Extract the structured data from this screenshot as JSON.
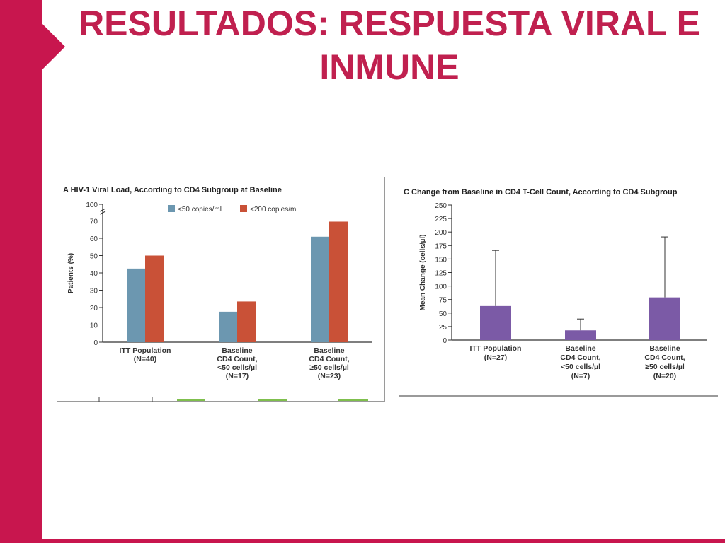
{
  "slide": {
    "title_line1": "RESULTADOS: RESPUESTA VIRAL E",
    "title_line2": "INMUNE",
    "accent_color": "#c8164e",
    "title_color": "#c0204f"
  },
  "chart_data": [
    {
      "type": "bar",
      "panel_letter": "A",
      "title": "HIV-1 Viral Load, According to CD4 Subgroup at Baseline",
      "ylabel": "Patients (%)",
      "xlabel": "",
      "ylim": [
        0,
        100
      ],
      "yticks": [
        0,
        10,
        20,
        30,
        40,
        50,
        60,
        70,
        100
      ],
      "axis_break": true,
      "legend_position": "top-center",
      "grid": false,
      "categories": [
        [
          "ITT Population",
          "(N=40)"
        ],
        [
          "Baseline",
          "CD4 Count,",
          "<50 cells/µl",
          "(N=17)"
        ],
        [
          "Baseline",
          "CD4 Count,",
          "≥50 cells/µl",
          "(N=23)"
        ]
      ],
      "series": [
        {
          "name": "<50 copies/ml",
          "color": "#6c97b0",
          "values": [
            42.5,
            17.6,
            60.9
          ]
        },
        {
          "name": "<200 copies/ml",
          "color": "#c95137",
          "values": [
            50,
            23.5,
            69.6
          ]
        }
      ]
    },
    {
      "type": "bar",
      "panel_letter": "C",
      "title": "Change from Baseline in CD4 T-Cell Count, According to CD4 Subgroup",
      "ylabel": "Mean Change (cells/µl)",
      "xlabel": "",
      "ylim": [
        0,
        250
      ],
      "yticks": [
        0,
        25,
        50,
        75,
        100,
        125,
        150,
        175,
        200,
        225,
        250
      ],
      "grid": false,
      "categories": [
        [
          "ITT Population",
          "(N=27)"
        ],
        [
          "Baseline",
          "CD4 Count,",
          "<50 cells/µl",
          "(N=7)"
        ],
        [
          "Baseline",
          "CD4 Count,",
          "≥50 cells/µl",
          "(N=20)"
        ]
      ],
      "series": [
        {
          "color": "#7b5aa6",
          "values": [
            63,
            18,
            79
          ],
          "error_upper": [
            166,
            39,
            191
          ]
        }
      ]
    }
  ]
}
